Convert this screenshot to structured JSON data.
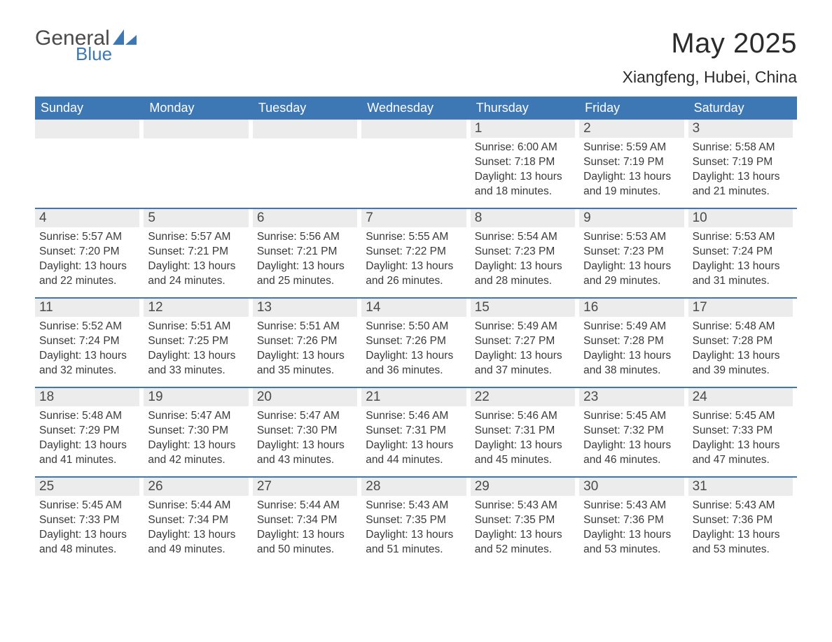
{
  "logo": {
    "word1": "General",
    "word2": "Blue"
  },
  "title": {
    "month": "May 2025",
    "location": "Xiangfeng, Hubei, China"
  },
  "styling": {
    "header_bg": "#3d78b4",
    "header_text": "#ffffff",
    "daynum_bg": "#ececec",
    "body_text": "#3a3a3a",
    "row_border": "#3d78b4",
    "logo_gray": "#4a4a4a",
    "logo_blue": "#3d78b4",
    "page_bg": "#ffffff",
    "title_fontsize": 40,
    "location_fontsize": 23,
    "weekday_fontsize": 18,
    "daynum_fontsize": 19,
    "detail_fontsize": 15.5
  },
  "weekdays": [
    "Sunday",
    "Monday",
    "Tuesday",
    "Wednesday",
    "Thursday",
    "Friday",
    "Saturday"
  ],
  "weeks": [
    [
      null,
      null,
      null,
      null,
      {
        "n": "1",
        "sunrise": "Sunrise: 6:00 AM",
        "sunset": "Sunset: 7:18 PM",
        "d1": "Daylight: 13 hours",
        "d2": "and 18 minutes."
      },
      {
        "n": "2",
        "sunrise": "Sunrise: 5:59 AM",
        "sunset": "Sunset: 7:19 PM",
        "d1": "Daylight: 13 hours",
        "d2": "and 19 minutes."
      },
      {
        "n": "3",
        "sunrise": "Sunrise: 5:58 AM",
        "sunset": "Sunset: 7:19 PM",
        "d1": "Daylight: 13 hours",
        "d2": "and 21 minutes."
      }
    ],
    [
      {
        "n": "4",
        "sunrise": "Sunrise: 5:57 AM",
        "sunset": "Sunset: 7:20 PM",
        "d1": "Daylight: 13 hours",
        "d2": "and 22 minutes."
      },
      {
        "n": "5",
        "sunrise": "Sunrise: 5:57 AM",
        "sunset": "Sunset: 7:21 PM",
        "d1": "Daylight: 13 hours",
        "d2": "and 24 minutes."
      },
      {
        "n": "6",
        "sunrise": "Sunrise: 5:56 AM",
        "sunset": "Sunset: 7:21 PM",
        "d1": "Daylight: 13 hours",
        "d2": "and 25 minutes."
      },
      {
        "n": "7",
        "sunrise": "Sunrise: 5:55 AM",
        "sunset": "Sunset: 7:22 PM",
        "d1": "Daylight: 13 hours",
        "d2": "and 26 minutes."
      },
      {
        "n": "8",
        "sunrise": "Sunrise: 5:54 AM",
        "sunset": "Sunset: 7:23 PM",
        "d1": "Daylight: 13 hours",
        "d2": "and 28 minutes."
      },
      {
        "n": "9",
        "sunrise": "Sunrise: 5:53 AM",
        "sunset": "Sunset: 7:23 PM",
        "d1": "Daylight: 13 hours",
        "d2": "and 29 minutes."
      },
      {
        "n": "10",
        "sunrise": "Sunrise: 5:53 AM",
        "sunset": "Sunset: 7:24 PM",
        "d1": "Daylight: 13 hours",
        "d2": "and 31 minutes."
      }
    ],
    [
      {
        "n": "11",
        "sunrise": "Sunrise: 5:52 AM",
        "sunset": "Sunset: 7:24 PM",
        "d1": "Daylight: 13 hours",
        "d2": "and 32 minutes."
      },
      {
        "n": "12",
        "sunrise": "Sunrise: 5:51 AM",
        "sunset": "Sunset: 7:25 PM",
        "d1": "Daylight: 13 hours",
        "d2": "and 33 minutes."
      },
      {
        "n": "13",
        "sunrise": "Sunrise: 5:51 AM",
        "sunset": "Sunset: 7:26 PM",
        "d1": "Daylight: 13 hours",
        "d2": "and 35 minutes."
      },
      {
        "n": "14",
        "sunrise": "Sunrise: 5:50 AM",
        "sunset": "Sunset: 7:26 PM",
        "d1": "Daylight: 13 hours",
        "d2": "and 36 minutes."
      },
      {
        "n": "15",
        "sunrise": "Sunrise: 5:49 AM",
        "sunset": "Sunset: 7:27 PM",
        "d1": "Daylight: 13 hours",
        "d2": "and 37 minutes."
      },
      {
        "n": "16",
        "sunrise": "Sunrise: 5:49 AM",
        "sunset": "Sunset: 7:28 PM",
        "d1": "Daylight: 13 hours",
        "d2": "and 38 minutes."
      },
      {
        "n": "17",
        "sunrise": "Sunrise: 5:48 AM",
        "sunset": "Sunset: 7:28 PM",
        "d1": "Daylight: 13 hours",
        "d2": "and 39 minutes."
      }
    ],
    [
      {
        "n": "18",
        "sunrise": "Sunrise: 5:48 AM",
        "sunset": "Sunset: 7:29 PM",
        "d1": "Daylight: 13 hours",
        "d2": "and 41 minutes."
      },
      {
        "n": "19",
        "sunrise": "Sunrise: 5:47 AM",
        "sunset": "Sunset: 7:30 PM",
        "d1": "Daylight: 13 hours",
        "d2": "and 42 minutes."
      },
      {
        "n": "20",
        "sunrise": "Sunrise: 5:47 AM",
        "sunset": "Sunset: 7:30 PM",
        "d1": "Daylight: 13 hours",
        "d2": "and 43 minutes."
      },
      {
        "n": "21",
        "sunrise": "Sunrise: 5:46 AM",
        "sunset": "Sunset: 7:31 PM",
        "d1": "Daylight: 13 hours",
        "d2": "and 44 minutes."
      },
      {
        "n": "22",
        "sunrise": "Sunrise: 5:46 AM",
        "sunset": "Sunset: 7:31 PM",
        "d1": "Daylight: 13 hours",
        "d2": "and 45 minutes."
      },
      {
        "n": "23",
        "sunrise": "Sunrise: 5:45 AM",
        "sunset": "Sunset: 7:32 PM",
        "d1": "Daylight: 13 hours",
        "d2": "and 46 minutes."
      },
      {
        "n": "24",
        "sunrise": "Sunrise: 5:45 AM",
        "sunset": "Sunset: 7:33 PM",
        "d1": "Daylight: 13 hours",
        "d2": "and 47 minutes."
      }
    ],
    [
      {
        "n": "25",
        "sunrise": "Sunrise: 5:45 AM",
        "sunset": "Sunset: 7:33 PM",
        "d1": "Daylight: 13 hours",
        "d2": "and 48 minutes."
      },
      {
        "n": "26",
        "sunrise": "Sunrise: 5:44 AM",
        "sunset": "Sunset: 7:34 PM",
        "d1": "Daylight: 13 hours",
        "d2": "and 49 minutes."
      },
      {
        "n": "27",
        "sunrise": "Sunrise: 5:44 AM",
        "sunset": "Sunset: 7:34 PM",
        "d1": "Daylight: 13 hours",
        "d2": "and 50 minutes."
      },
      {
        "n": "28",
        "sunrise": "Sunrise: 5:43 AM",
        "sunset": "Sunset: 7:35 PM",
        "d1": "Daylight: 13 hours",
        "d2": "and 51 minutes."
      },
      {
        "n": "29",
        "sunrise": "Sunrise: 5:43 AM",
        "sunset": "Sunset: 7:35 PM",
        "d1": "Daylight: 13 hours",
        "d2": "and 52 minutes."
      },
      {
        "n": "30",
        "sunrise": "Sunrise: 5:43 AM",
        "sunset": "Sunset: 7:36 PM",
        "d1": "Daylight: 13 hours",
        "d2": "and 53 minutes."
      },
      {
        "n": "31",
        "sunrise": "Sunrise: 5:43 AM",
        "sunset": "Sunset: 7:36 PM",
        "d1": "Daylight: 13 hours",
        "d2": "and 53 minutes."
      }
    ]
  ]
}
